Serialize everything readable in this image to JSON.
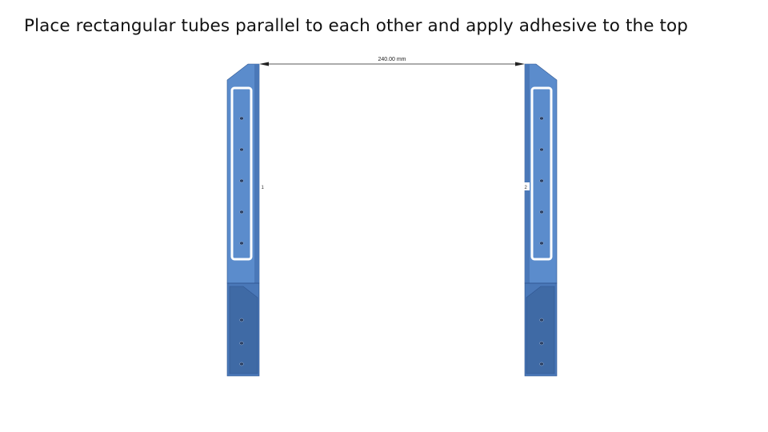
{
  "slide": {
    "title": "Place rectangular tubes parallel to each other and apply adhesive to the top"
  },
  "diagram": {
    "dimension_label": "240.00 mm",
    "left_tube_tag": "1",
    "right_tube_tag": "2",
    "colors": {
      "tube_main": "#5b8ccc",
      "tube_dark": "#4a78b8",
      "tube_shadow": "#3f6aa5",
      "tube_edge": "#2f5590",
      "adhesive_outline": "#ffffff",
      "hole": "#2a3f63",
      "dimension_line": "#222222"
    }
  }
}
